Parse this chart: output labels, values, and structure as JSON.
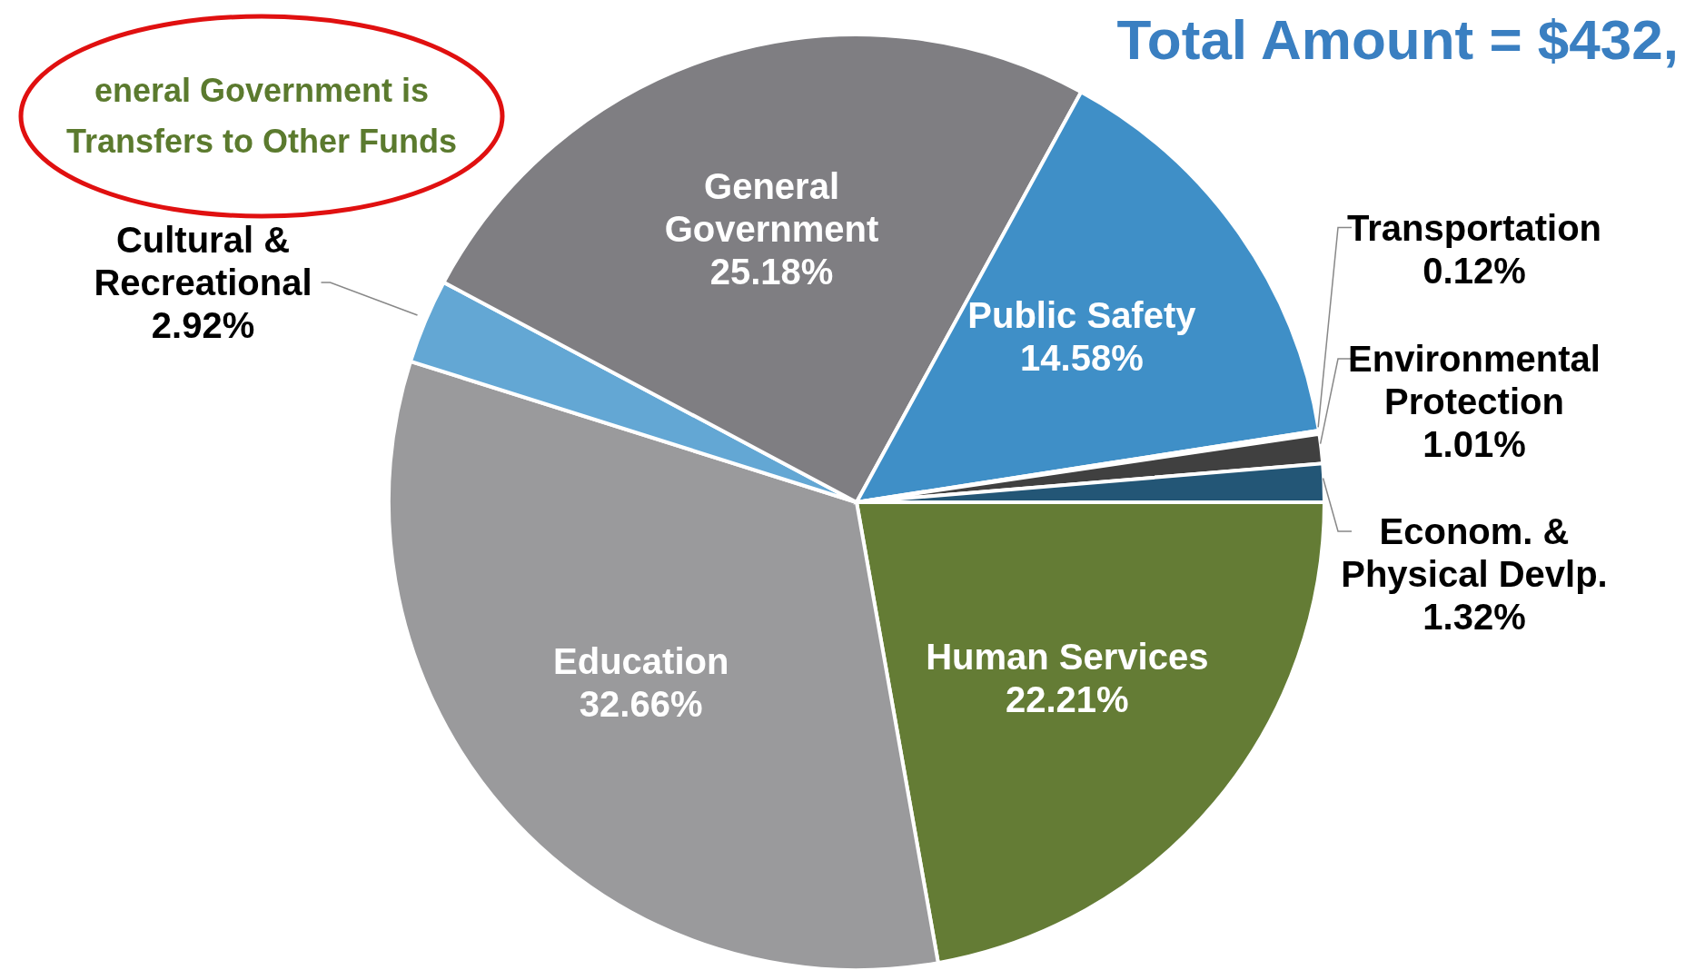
{
  "chart_data": {
    "type": "pie",
    "title": "Total Amount = $432,",
    "annotations": [
      "eneral Government is",
      "Transfers to Other Funds"
    ],
    "categories": [
      "Human Services",
      "Education",
      "Cultural & Recreational",
      "General Government",
      "Public Safety",
      "Transportation",
      "Environmental Protection",
      "Econom. & Physical Devlp."
    ],
    "values": [
      22.21,
      32.66,
      2.92,
      25.18,
      14.58,
      0.12,
      1.01,
      1.32
    ],
    "colors": [
      "#647c35",
      "#9a9a9c",
      "#63a7d4",
      "#7f7e82",
      "#3f8fc7",
      "#8aae50",
      "#404040",
      "#235676"
    ],
    "value_labels": [
      "22.21%",
      "32.66%",
      "2.92%",
      "25.18%",
      "14.58%",
      "0.12%",
      "1.01%",
      "1.32%"
    ]
  }
}
